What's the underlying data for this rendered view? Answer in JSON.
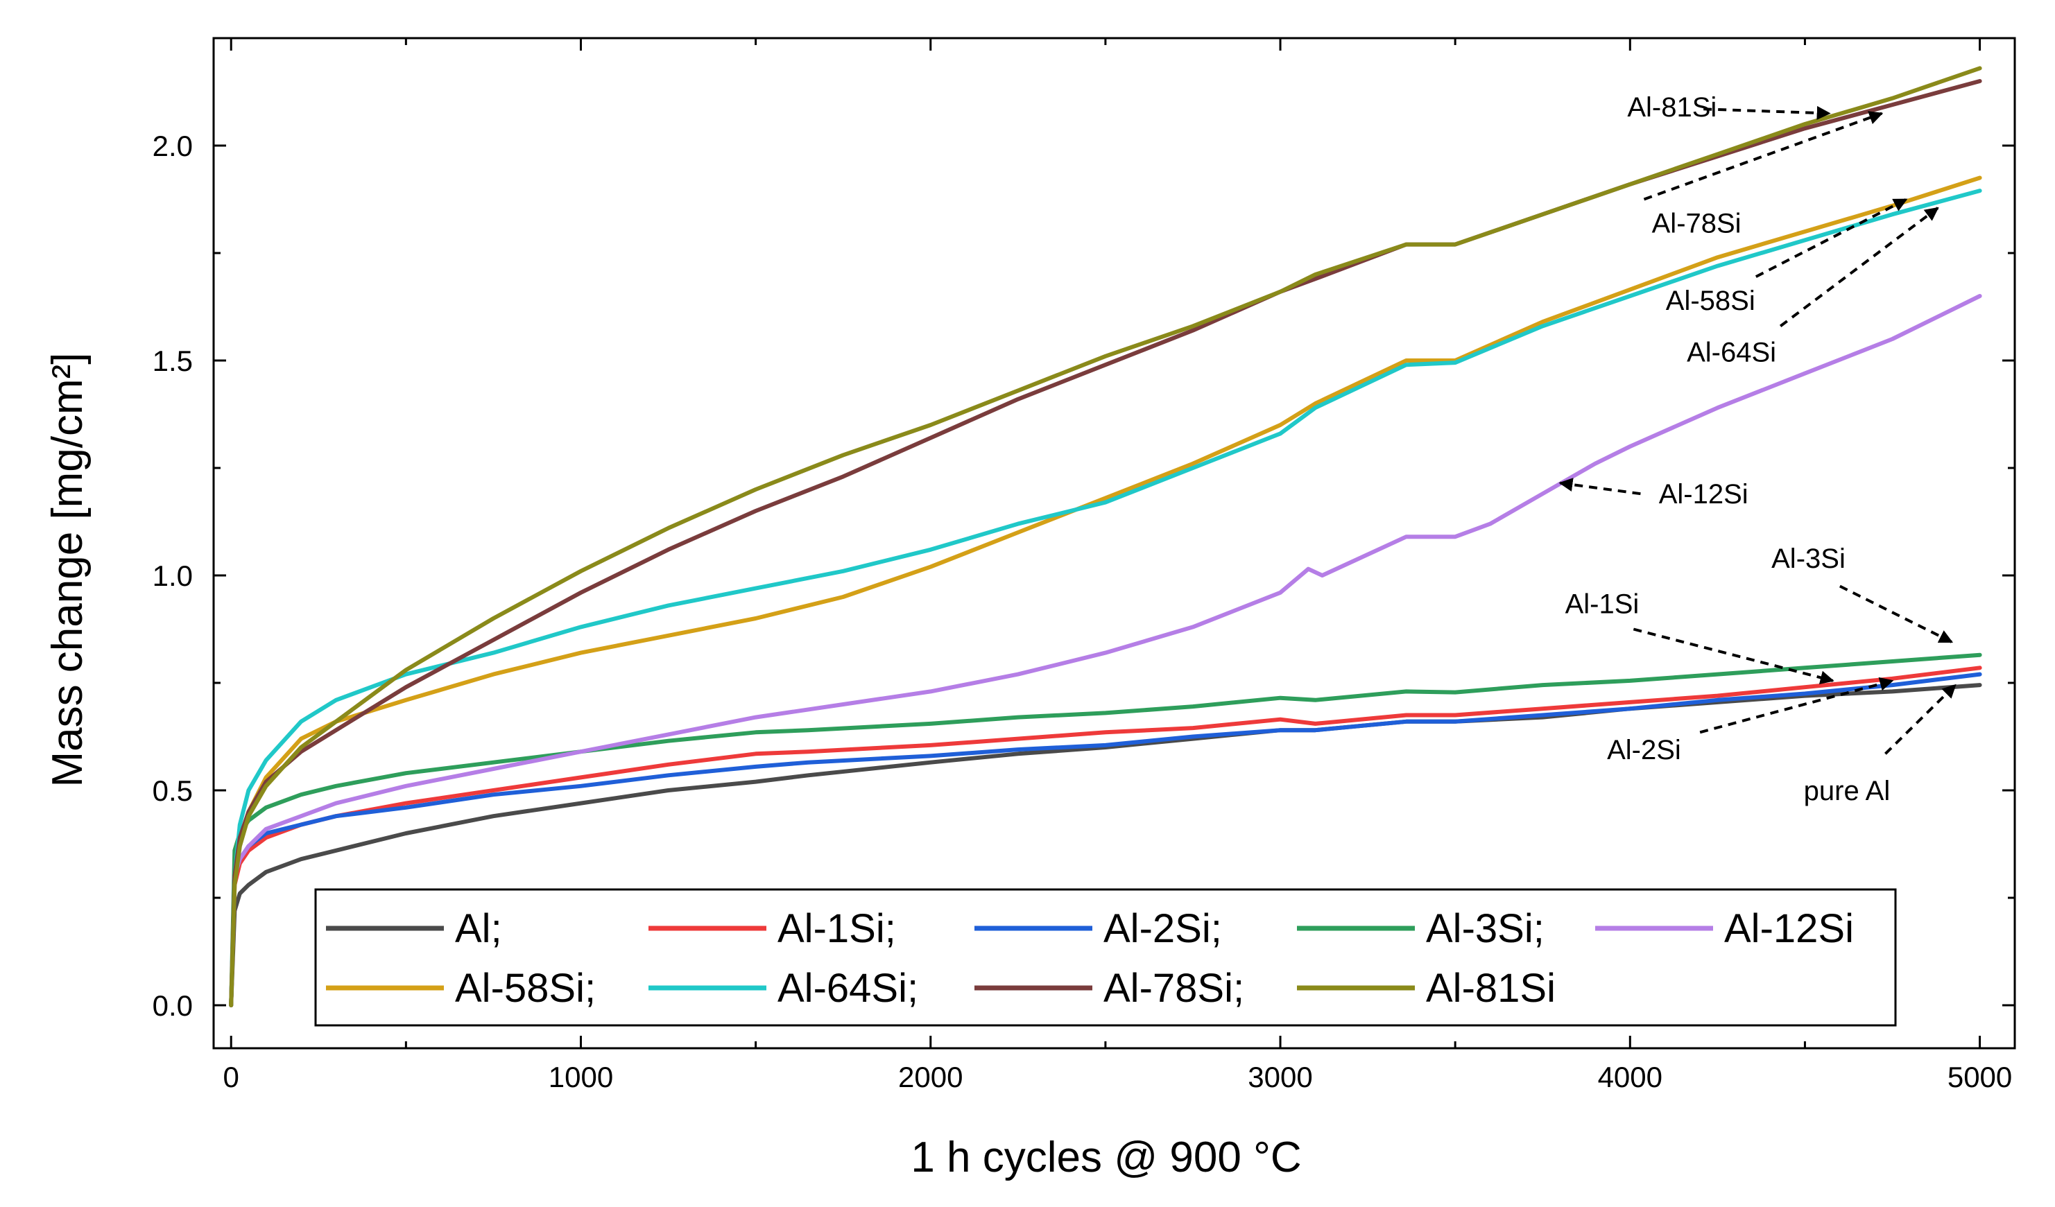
{
  "chart_data": {
    "type": "line",
    "title": "",
    "xlabel": "1 h cycles @ 900 °C",
    "ylabel": "Mass change [mg/cm²]",
    "xlim": [
      -50,
      5100
    ],
    "ylim": [
      -0.1,
      2.25
    ],
    "xticks": [
      0,
      1000,
      2000,
      3000,
      4000,
      5000
    ],
    "yticks": [
      0.0,
      0.5,
      1.0,
      1.5,
      2.0
    ],
    "xtick_labels": [
      "0",
      "1000",
      "2000",
      "3000",
      "4000",
      "5000"
    ],
    "ytick_labels": [
      "0.0",
      "0.5",
      "1.0",
      "1.5",
      "2.0"
    ],
    "grid": false,
    "legend_position": "bottom",
    "series": [
      {
        "name": "Al",
        "legend_label": "Al;",
        "color": "#4a4a4a",
        "x": [
          0,
          10,
          25,
          50,
          100,
          200,
          300,
          500,
          750,
          1000,
          1250,
          1500,
          1650,
          2000,
          2250,
          2500,
          2750,
          3000,
          3100,
          3360,
          3500,
          3750,
          4000,
          4250,
          4500,
          4750,
          5000
        ],
        "y": [
          0,
          0.22,
          0.26,
          0.28,
          0.31,
          0.34,
          0.36,
          0.4,
          0.44,
          0.47,
          0.5,
          0.52,
          0.535,
          0.565,
          0.585,
          0.6,
          0.62,
          0.64,
          0.64,
          0.66,
          0.66,
          0.67,
          0.69,
          0.705,
          0.72,
          0.73,
          0.745
        ]
      },
      {
        "name": "Al-1Si",
        "legend_label": "Al-1Si;",
        "color": "#ee3a3a",
        "x": [
          0,
          10,
          25,
          50,
          100,
          200,
          300,
          500,
          750,
          1000,
          1250,
          1500,
          1650,
          2000,
          2250,
          2500,
          2750,
          3000,
          3100,
          3360,
          3500,
          3750,
          4000,
          4250,
          4500,
          4750,
          5000
        ],
        "y": [
          0,
          0.28,
          0.33,
          0.36,
          0.39,
          0.42,
          0.44,
          0.47,
          0.5,
          0.53,
          0.56,
          0.585,
          0.59,
          0.605,
          0.62,
          0.635,
          0.645,
          0.665,
          0.655,
          0.675,
          0.675,
          0.69,
          0.705,
          0.72,
          0.74,
          0.76,
          0.785
        ]
      },
      {
        "name": "Al-2Si",
        "legend_label": "Al-2Si;",
        "color": "#1f5fd8",
        "x": [
          0,
          10,
          25,
          50,
          100,
          200,
          300,
          500,
          750,
          1000,
          1250,
          1500,
          1650,
          2000,
          2250,
          2500,
          2750,
          3000,
          3100,
          3360,
          3500,
          3750,
          4000,
          4250,
          4500,
          4750,
          5000
        ],
        "y": [
          0,
          0.3,
          0.34,
          0.37,
          0.4,
          0.42,
          0.44,
          0.46,
          0.49,
          0.51,
          0.535,
          0.555,
          0.565,
          0.58,
          0.595,
          0.605,
          0.625,
          0.64,
          0.64,
          0.66,
          0.66,
          0.675,
          0.69,
          0.71,
          0.725,
          0.745,
          0.77
        ]
      },
      {
        "name": "Al-3Si",
        "legend_label": "Al-3Si;",
        "color": "#2e9e5b",
        "x": [
          0,
          10,
          25,
          50,
          100,
          200,
          300,
          500,
          750,
          1000,
          1250,
          1500,
          1650,
          2000,
          2250,
          2500,
          2750,
          3000,
          3100,
          3360,
          3500,
          3750,
          4000,
          4250,
          4500,
          4750,
          5000
        ],
        "y": [
          0,
          0.36,
          0.4,
          0.43,
          0.46,
          0.49,
          0.51,
          0.54,
          0.565,
          0.59,
          0.615,
          0.635,
          0.64,
          0.655,
          0.67,
          0.68,
          0.695,
          0.715,
          0.71,
          0.73,
          0.728,
          0.745,
          0.755,
          0.77,
          0.785,
          0.8,
          0.815
        ]
      },
      {
        "name": "Al-12Si",
        "legend_label": "Al-12Si",
        "color": "#b57ee6",
        "x": [
          0,
          10,
          25,
          50,
          100,
          200,
          300,
          500,
          750,
          1000,
          1250,
          1500,
          1750,
          2000,
          2250,
          2500,
          2750,
          3000,
          3080,
          3120,
          3200,
          3360,
          3500,
          3600,
          3750,
          3900,
          4000,
          4250,
          4500,
          4750,
          5000
        ],
        "y": [
          0,
          0.3,
          0.34,
          0.37,
          0.41,
          0.44,
          0.47,
          0.51,
          0.55,
          0.59,
          0.63,
          0.67,
          0.7,
          0.73,
          0.77,
          0.82,
          0.88,
          0.96,
          1.015,
          1.0,
          1.03,
          1.09,
          1.09,
          1.12,
          1.19,
          1.26,
          1.3,
          1.39,
          1.47,
          1.55,
          1.65
        ]
      },
      {
        "name": "Al-58Si",
        "legend_label": "Al-58Si;",
        "color": "#d4a017",
        "x": [
          0,
          10,
          25,
          50,
          100,
          200,
          300,
          500,
          750,
          1000,
          1250,
          1500,
          1750,
          2000,
          2250,
          2500,
          2750,
          3000,
          3100,
          3360,
          3500,
          3750,
          4000,
          4250,
          4500,
          4750,
          5000
        ],
        "y": [
          0,
          0.3,
          0.38,
          0.45,
          0.53,
          0.62,
          0.66,
          0.71,
          0.77,
          0.82,
          0.86,
          0.9,
          0.95,
          1.02,
          1.1,
          1.18,
          1.26,
          1.35,
          1.4,
          1.5,
          1.5,
          1.59,
          1.665,
          1.74,
          1.8,
          1.86,
          1.925
        ]
      },
      {
        "name": "Al-64Si",
        "legend_label": "Al-64Si;",
        "color": "#20c8c8",
        "x": [
          0,
          10,
          25,
          50,
          100,
          200,
          300,
          500,
          750,
          1000,
          1250,
          1500,
          1750,
          2000,
          2250,
          2500,
          2750,
          3000,
          3100,
          3360,
          3500,
          3750,
          4000,
          4250,
          4500,
          4750,
          5000
        ],
        "y": [
          0,
          0.3,
          0.42,
          0.5,
          0.57,
          0.66,
          0.71,
          0.77,
          0.82,
          0.88,
          0.93,
          0.97,
          1.01,
          1.06,
          1.12,
          1.17,
          1.25,
          1.33,
          1.39,
          1.49,
          1.495,
          1.58,
          1.65,
          1.72,
          1.78,
          1.84,
          1.895
        ]
      },
      {
        "name": "Al-78Si",
        "legend_label": "Al-78Si;",
        "color": "#7a3c3c",
        "x": [
          0,
          10,
          25,
          50,
          100,
          200,
          300,
          500,
          750,
          1000,
          1250,
          1500,
          1750,
          2000,
          2250,
          2500,
          2750,
          3000,
          3100,
          3360,
          3500,
          3750,
          4000,
          4250,
          4500,
          4750,
          5000
        ],
        "y": [
          0,
          0.3,
          0.39,
          0.45,
          0.52,
          0.59,
          0.64,
          0.74,
          0.85,
          0.96,
          1.06,
          1.15,
          1.23,
          1.32,
          1.41,
          1.49,
          1.57,
          1.66,
          1.69,
          1.77,
          1.77,
          1.84,
          1.91,
          1.975,
          2.04,
          2.095,
          2.15
        ]
      },
      {
        "name": "Al-81Si",
        "legend_label": "Al-81Si",
        "color": "#8a8a1a",
        "x": [
          0,
          10,
          25,
          50,
          100,
          200,
          300,
          500,
          750,
          1000,
          1250,
          1500,
          1750,
          2000,
          2250,
          2500,
          2750,
          3000,
          3100,
          3360,
          3500,
          3750,
          4000,
          4250,
          4500,
          4750,
          5000
        ],
        "y": [
          0,
          0.28,
          0.37,
          0.44,
          0.51,
          0.6,
          0.66,
          0.78,
          0.9,
          1.01,
          1.11,
          1.2,
          1.28,
          1.35,
          1.43,
          1.51,
          1.58,
          1.66,
          1.7,
          1.77,
          1.77,
          1.84,
          1.91,
          1.98,
          2.05,
          2.11,
          2.18
        ]
      }
    ],
    "annotations": [
      {
        "text": "Al-81Si",
        "label_x": 4120,
        "label_y": 2.09,
        "tail_x": 4210,
        "tail_y": 2.085,
        "head_x": 4570,
        "head_y": 2.075
      },
      {
        "text": "Al-78Si",
        "label_x": 4190,
        "label_y": 1.82,
        "tail_x": 4040,
        "tail_y": 1.875,
        "head_x": 4720,
        "head_y": 2.075
      },
      {
        "text": "Al-58Si",
        "label_x": 4230,
        "label_y": 1.64,
        "tail_x": 4360,
        "tail_y": 1.695,
        "head_x": 4790,
        "head_y": 1.875
      },
      {
        "text": "Al-64Si",
        "label_x": 4290,
        "label_y": 1.52,
        "tail_x": 4430,
        "tail_y": 1.58,
        "head_x": 4880,
        "head_y": 1.855
      },
      {
        "text": "Al-12Si",
        "label_x": 4210,
        "label_y": 1.19,
        "tail_x": 4030,
        "tail_y": 1.19,
        "head_x": 3800,
        "head_y": 1.215
      },
      {
        "text": "Al-3Si",
        "label_x": 4510,
        "label_y": 1.04,
        "tail_x": 4600,
        "tail_y": 0.975,
        "head_x": 4920,
        "head_y": 0.845
      },
      {
        "text": "Al-1Si",
        "label_x": 3920,
        "label_y": 0.935,
        "tail_x": 4010,
        "tail_y": 0.875,
        "head_x": 4580,
        "head_y": 0.755
      },
      {
        "text": "Al-2Si",
        "label_x": 4040,
        "label_y": 0.595,
        "tail_x": 4200,
        "tail_y": 0.635,
        "head_x": 4750,
        "head_y": 0.755
      },
      {
        "text": "pure Al",
        "label_x": 4620,
        "label_y": 0.5,
        "tail_x": 4730,
        "tail_y": 0.585,
        "head_x": 4930,
        "head_y": 0.745
      }
    ]
  }
}
